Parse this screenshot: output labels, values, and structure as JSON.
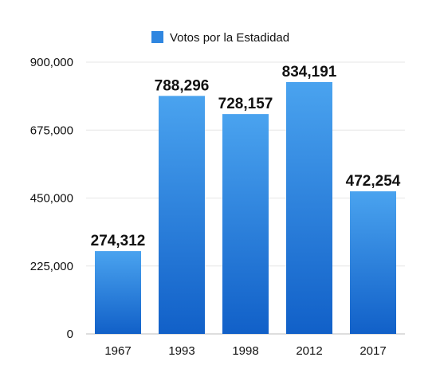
{
  "chart_data": {
    "type": "bar",
    "title": "",
    "xlabel": "",
    "ylabel": "",
    "categories": [
      "1967",
      "1993",
      "1998",
      "2012",
      "2017"
    ],
    "series": [
      {
        "name": "Votos por la Estadidad",
        "values": [
          274312,
          788296,
          728157,
          834191,
          472254
        ],
        "data_labels": [
          "274,312",
          "788,296",
          "728,157",
          "834,191",
          "472,254"
        ]
      }
    ],
    "ylim": [
      0,
      900000
    ],
    "yticks": [
      0,
      225000,
      450000,
      675000,
      900000
    ],
    "ytick_labels": [
      "0",
      "225,000",
      "450,000",
      "675,000",
      "900,000"
    ],
    "grid": true,
    "legend_position": "top-center",
    "colors": {
      "bar_top": "#4aa3ef",
      "bar_bottom": "#1160c8",
      "legend_swatch": "#2f86e0"
    }
  }
}
